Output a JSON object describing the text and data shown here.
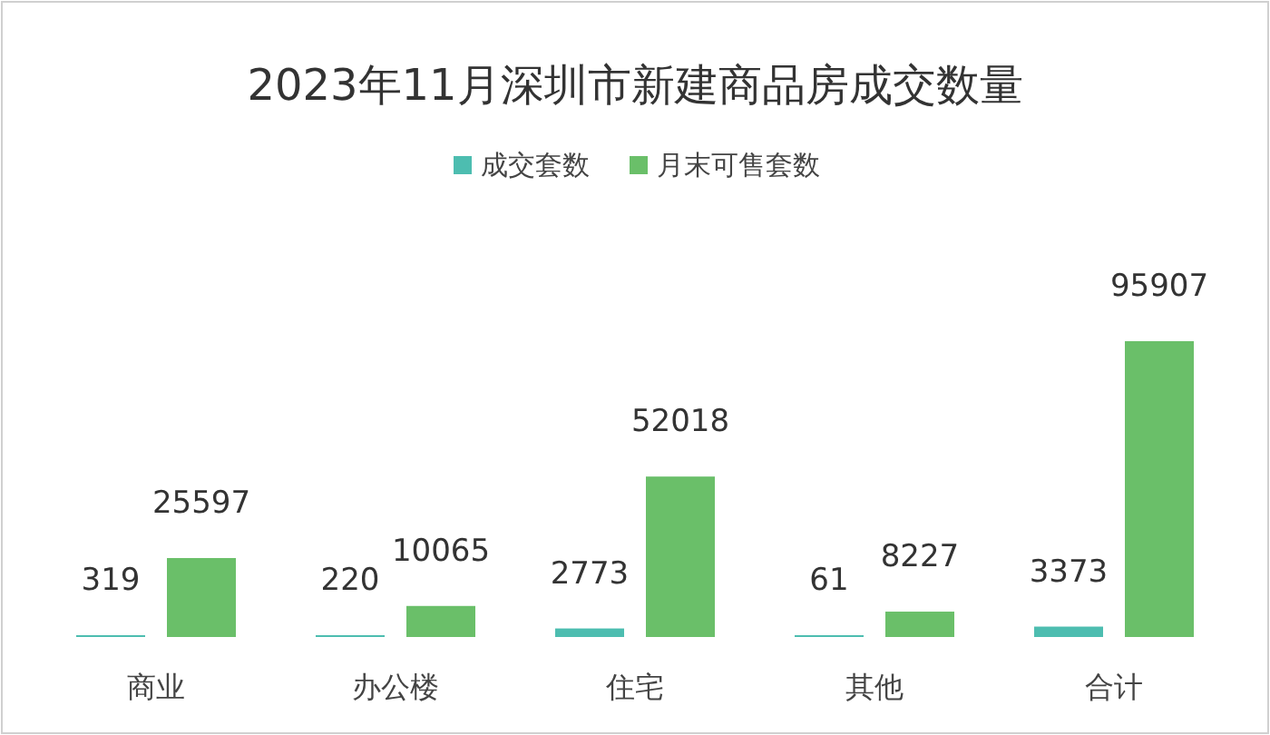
{
  "chart_data": {
    "type": "bar",
    "title": "2023年11月深圳市新建商品房成交数量",
    "categories": [
      "商业",
      "办公楼",
      "住宅",
      "其他",
      "合计"
    ],
    "series": [
      {
        "name": "成交套数",
        "color": "#4dbdb0",
        "values": [
          319,
          220,
          2773,
          61,
          3373
        ]
      },
      {
        "name": "月末可售套数",
        "color": "#6abf69",
        "values": [
          25597,
          10065,
          52018,
          8227,
          95907
        ]
      }
    ],
    "data_labels": true,
    "legend": "top",
    "grid": false
  }
}
